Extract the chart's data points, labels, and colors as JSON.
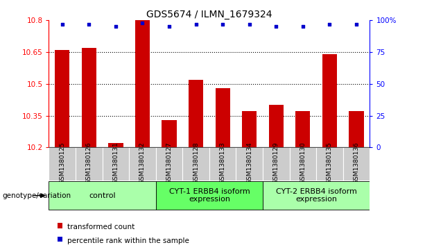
{
  "title": "GDS5674 / ILMN_1679324",
  "samples": [
    "GSM1380125",
    "GSM1380126",
    "GSM1380131",
    "GSM1380132",
    "GSM1380127",
    "GSM1380128",
    "GSM1380133",
    "GSM1380134",
    "GSM1380129",
    "GSM1380130",
    "GSM1380135",
    "GSM1380136"
  ],
  "bar_values": [
    10.66,
    10.67,
    10.22,
    10.8,
    10.33,
    10.52,
    10.48,
    10.37,
    10.4,
    10.37,
    10.64,
    10.37
  ],
  "percentile_values": [
    97,
    97,
    95,
    98,
    95,
    97,
    97,
    97,
    95,
    95,
    97,
    97
  ],
  "ylim_left": [
    10.2,
    10.8
  ],
  "ylim_right": [
    0,
    100
  ],
  "yticks_left": [
    10.2,
    10.35,
    10.5,
    10.65,
    10.8
  ],
  "yticks_right": [
    0,
    25,
    50,
    75,
    100
  ],
  "ytick_labels_left": [
    "10.2",
    "10.35",
    "10.5",
    "10.65",
    "10.8"
  ],
  "ytick_labels_right": [
    "0",
    "25",
    "50",
    "75",
    "100%"
  ],
  "bar_color": "#cc0000",
  "dot_color": "#0000cc",
  "groups": [
    {
      "label": "control",
      "start": 0,
      "end": 3,
      "color": "#aaffaa"
    },
    {
      "label": "CYT-1 ERBB4 isoform\nexpression",
      "start": 4,
      "end": 7,
      "color": "#66ff66"
    },
    {
      "label": "CYT-2 ERBB4 isoform\nexpression",
      "start": 8,
      "end": 11,
      "color": "#aaffaa"
    }
  ],
  "genotype_label": "genotype/variation",
  "legend_bar_label": "transformed count",
  "legend_dot_label": "percentile rank within the sample",
  "tick_area_color": "#cccccc",
  "bar_width": 0.55,
  "title_fontsize": 10,
  "tick_fontsize": 7.5,
  "sample_fontsize": 6.5,
  "group_fontsize": 8
}
